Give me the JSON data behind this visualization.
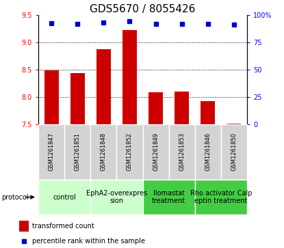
{
  "title": "GDS5670 / 8055426",
  "samples": [
    "GSM1261847",
    "GSM1261851",
    "GSM1261848",
    "GSM1261852",
    "GSM1261849",
    "GSM1261853",
    "GSM1261846",
    "GSM1261850"
  ],
  "bar_values": [
    8.48,
    8.43,
    8.87,
    9.22,
    8.08,
    8.1,
    7.92,
    7.51
  ],
  "dot_values": [
    92.5,
    92.0,
    93.0,
    94.0,
    91.5,
    91.5,
    91.5,
    91.0
  ],
  "ylim_left": [
    7.5,
    9.5
  ],
  "ylim_right": [
    0,
    100
  ],
  "yticks_left": [
    7.5,
    8.0,
    8.5,
    9.0,
    9.5
  ],
  "yticks_right": [
    0,
    25,
    50,
    75,
    100
  ],
  "dotted_lines": [
    8.0,
    8.5,
    9.0
  ],
  "bar_color": "#cc0000",
  "dot_color": "#0000cc",
  "bar_bottom": 7.5,
  "protocols": [
    {
      "label": "control",
      "cols": [
        0,
        1
      ],
      "color": "#ccffcc"
    },
    {
      "label": "EphA2-overexpres\nsion",
      "cols": [
        2,
        3
      ],
      "color": "#ccffcc"
    },
    {
      "label": "Ilomastat\ntreatment",
      "cols": [
        4,
        5
      ],
      "color": "#44cc44"
    },
    {
      "label": "Rho activator Calp\neptin treatment",
      "cols": [
        6,
        7
      ],
      "color": "#44cc44"
    }
  ],
  "legend_bar_label": "transformed count",
  "legend_dot_label": "percentile rank within the sample",
  "protocol_label": "protocol",
  "title_fontsize": 11,
  "tick_fontsize": 7,
  "sample_fontsize": 6,
  "proto_fontsize": 7,
  "legend_fontsize": 7
}
